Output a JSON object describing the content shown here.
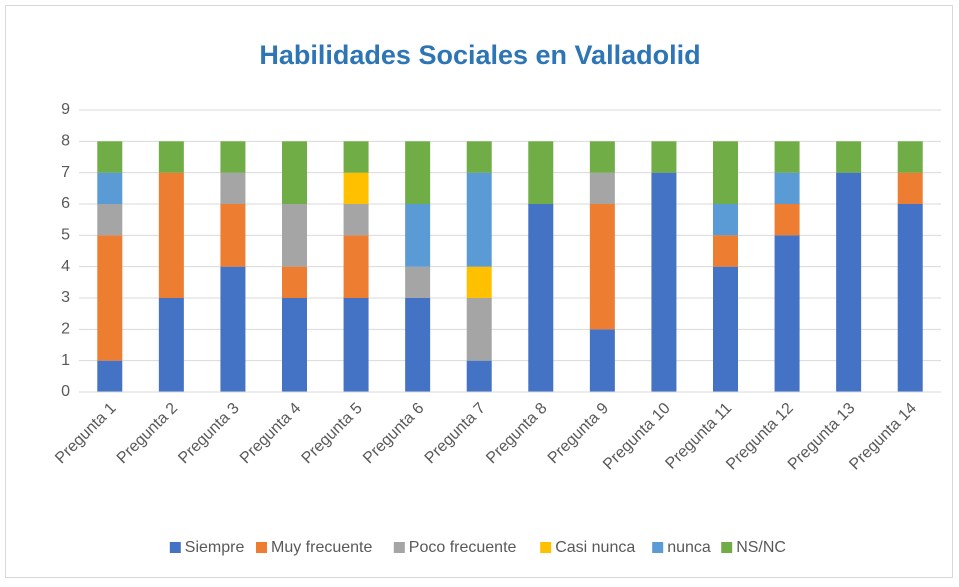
{
  "chart_data": {
    "type": "stacked_bar",
    "title": "Habilidades Sociales en Valladolid",
    "categories": [
      "Pregunta 1",
      "Pregunta 2",
      "Pregunta 3",
      "Pregunta 4",
      "Pregunta 5",
      "Pregunta 6",
      "Pregunta 7",
      "Pregunta 8",
      "Pregunta 9",
      "Pregunta 10",
      "Pregunta 11",
      "Pregunta 12",
      "Pregunta 13",
      "Pregunta 14"
    ],
    "series": [
      {
        "name": "Siempre",
        "color": "#4472c4",
        "values": [
          1,
          3,
          4,
          3,
          3,
          3,
          1,
          6,
          2,
          7,
          4,
          5,
          7,
          6
        ]
      },
      {
        "name": "Muy frecuente",
        "color": "#ed7d31",
        "values": [
          4,
          4,
          2,
          1,
          2,
          0,
          0,
          0,
          4,
          0,
          1,
          1,
          0,
          1
        ]
      },
      {
        "name": "Poco frecuente",
        "color": "#a5a5a5",
        "values": [
          1,
          0,
          1,
          2,
          1,
          1,
          2,
          0,
          1,
          0,
          0,
          0,
          0,
          0
        ]
      },
      {
        "name": "Casi nunca",
        "color": "#ffc000",
        "values": [
          0,
          0,
          0,
          0,
          1,
          0,
          1,
          0,
          0,
          0,
          0,
          0,
          0,
          0
        ]
      },
      {
        "name": "nunca",
        "color": "#5b9bd5",
        "values": [
          1,
          0,
          0,
          0,
          0,
          2,
          3,
          0,
          0,
          0,
          1,
          1,
          0,
          0
        ]
      },
      {
        "name": "NS/NC",
        "color": "#70ad47",
        "values": [
          1,
          1,
          1,
          2,
          1,
          2,
          1,
          2,
          1,
          1,
          2,
          1,
          1,
          1
        ]
      }
    ],
    "ylim": [
      0,
      9
    ],
    "yticks": [
      0,
      1,
      2,
      3,
      4,
      5,
      6,
      7,
      8,
      9
    ],
    "grid": true,
    "legend": "bottom"
  }
}
